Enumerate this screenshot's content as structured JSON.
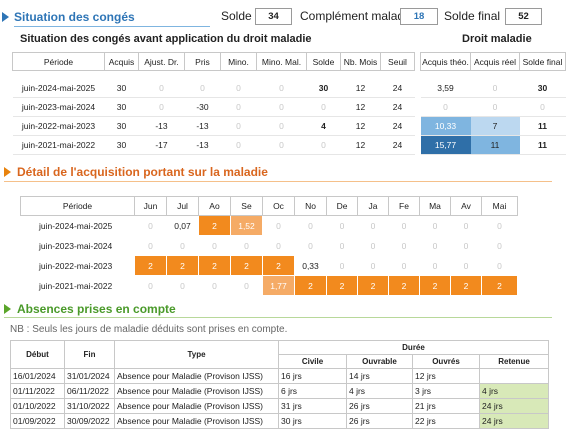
{
  "header": {
    "title": "Situation des congés",
    "solde_label": "Solde",
    "solde_value": "34",
    "complement_label": "Complément maladie",
    "complement_value": "18",
    "solde_final_label": "Solde final",
    "solde_final_value": "52"
  },
  "situation": {
    "title": "Situation des congés avant application du droit maladie",
    "droit_title": "Droit maladie",
    "columns": [
      "Période",
      "Acquis",
      "Ajust. Dr.",
      "Pris",
      "Mino.",
      "Mino. Mal.",
      "Solde",
      "Nb. Mois",
      "Seuil"
    ],
    "droit_columns": [
      "Acquis théo.",
      "Acquis réel",
      "Solde final"
    ],
    "rows": [
      {
        "periode": "juin-2024-mai-2025",
        "acquis": "30",
        "ajust": "0",
        "pris": "0",
        "mino": "0",
        "mino_mal": "0",
        "solde": "30",
        "nb_mois": "12",
        "seuil": "24",
        "acquis_theo": "3,59",
        "acquis_reel": "0",
        "solde_final": "30"
      },
      {
        "periode": "juin-2023-mai-2024",
        "acquis": "30",
        "ajust": "0",
        "pris": "-30",
        "mino": "0",
        "mino_mal": "0",
        "solde": "0",
        "nb_mois": "12",
        "seuil": "24",
        "acquis_theo": "0",
        "acquis_reel": "0",
        "solde_final": "0"
      },
      {
        "periode": "juin-2022-mai-2023",
        "acquis": "30",
        "ajust": "-13",
        "pris": "-13",
        "mino": "0",
        "mino_mal": "0",
        "solde": "4",
        "nb_mois": "12",
        "seuil": "24",
        "acquis_theo": "10,33",
        "acquis_reel": "7",
        "solde_final": "11"
      },
      {
        "periode": "juin-2021-mai-2022",
        "acquis": "30",
        "ajust": "-17",
        "pris": "-13",
        "mino": "0",
        "mino_mal": "0",
        "solde": "0",
        "nb_mois": "12",
        "seuil": "24",
        "acquis_theo": "15,77",
        "acquis_reel": "11",
        "solde_final": "11"
      }
    ]
  },
  "detail": {
    "title": "Détail de l'acquisition portant sur la maladie",
    "columns": [
      "Période",
      "Jun",
      "Jul",
      "Ao",
      "Se",
      "Oc",
      "No",
      "De",
      "Ja",
      "Fe",
      "Ma",
      "Av",
      "Mai"
    ],
    "rows": [
      {
        "periode": "juin-2024-mai-2025",
        "values": [
          "0",
          "0,07",
          "2",
          "1,52",
          "0",
          "0",
          "0",
          "0",
          "0",
          "0",
          "0",
          "0"
        ]
      },
      {
        "periode": "juin-2023-mai-2024",
        "values": [
          "0",
          "0",
          "0",
          "0",
          "0",
          "0",
          "0",
          "0",
          "0",
          "0",
          "0",
          "0"
        ]
      },
      {
        "periode": "juin-2022-mai-2023",
        "values": [
          "2",
          "2",
          "2",
          "2",
          "2",
          "0,33",
          "0",
          "0",
          "0",
          "0",
          "0",
          "0"
        ]
      },
      {
        "periode": "juin-2021-mai-2022",
        "values": [
          "0",
          "0",
          "0",
          "0",
          "1,77",
          "2",
          "2",
          "2",
          "2",
          "2",
          "2",
          "2"
        ]
      }
    ]
  },
  "absences": {
    "title": "Absences prises en compte",
    "note": "NB : Seuls les jours de maladie déduits sont prises en compte.",
    "columns": {
      "debut": "Début",
      "fin": "Fin",
      "type": "Type",
      "duree": "Durée",
      "civile": "Civile",
      "ouvrable": "Ouvrable",
      "ouvres": "Ouvrés",
      "retenue": "Retenue"
    },
    "rows": [
      {
        "debut": "16/01/2024",
        "fin": "31/01/2024",
        "type": "Absence pour Maladie (Provison IJSS)",
        "civile": "16 jrs",
        "ouvrable": "14 jrs",
        "ouvres": "12 jrs",
        "retenue": ""
      },
      {
        "debut": "01/11/2022",
        "fin": "06/11/2022",
        "type": "Absence pour Maladie (Provison IJSS)",
        "civile": "6 jrs",
        "ouvrable": "4 jrs",
        "ouvres": "3 jrs",
        "retenue": "4 jrs"
      },
      {
        "debut": "01/10/2022",
        "fin": "31/10/2022",
        "type": "Absence pour Maladie (Provison IJSS)",
        "civile": "31 jrs",
        "ouvrable": "26 jrs",
        "ouvres": "21 jrs",
        "retenue": "24 jrs"
      },
      {
        "debut": "01/09/2022",
        "fin": "30/09/2022",
        "type": "Absence pour Maladie (Provison IJSS)",
        "civile": "30 jrs",
        "ouvrable": "26 jrs",
        "ouvres": "22 jrs",
        "retenue": "24 jrs"
      }
    ]
  },
  "colors": {
    "blue_title": "#2e75b6",
    "orange": "#f28a1e",
    "light_orange": "#f5ab66",
    "green_title": "#4a9a2a",
    "dark_blue_cell": "#2f6fa8",
    "mid_blue_cell": "#7fb5e0",
    "light_blue_cell": "#bcd8f0",
    "retenue_green": "#d8e9b8"
  }
}
